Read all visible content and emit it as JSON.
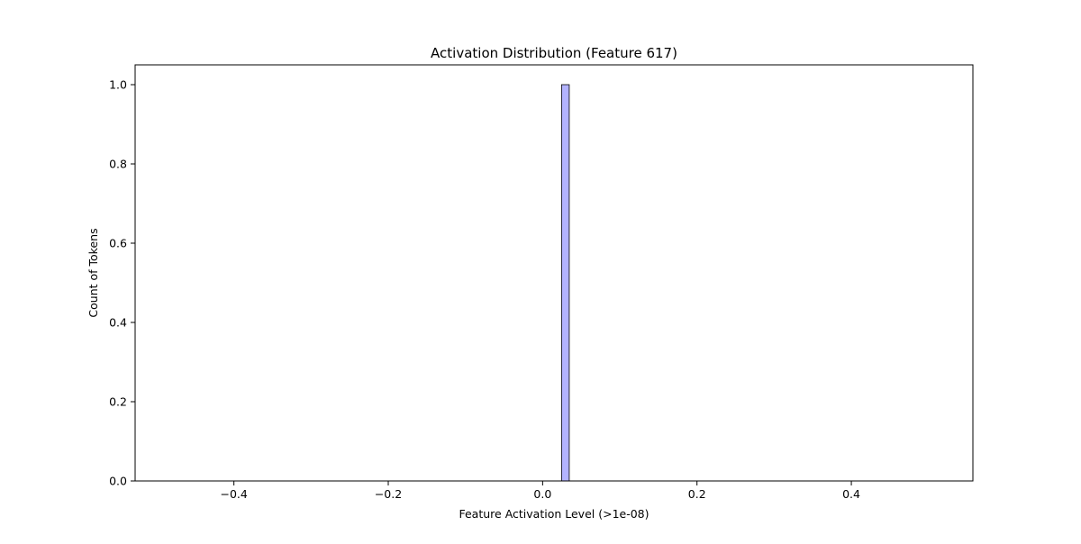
{
  "chart_data": {
    "type": "bar",
    "title": "Activation Distribution (Feature 617)",
    "xlabel": "Feature Activation Level (>1e-08)",
    "ylabel": "Count of Tokens",
    "xlim": [
      -0.528,
      0.5575
    ],
    "ylim": [
      0,
      1.05
    ],
    "xticks": [
      {
        "value": -0.4,
        "label": "−0.4"
      },
      {
        "value": -0.2,
        "label": "−0.2"
      },
      {
        "value": 0.0,
        "label": "0.0"
      },
      {
        "value": 0.2,
        "label": "0.2"
      },
      {
        "value": 0.4,
        "label": "0.4"
      }
    ],
    "yticks": [
      {
        "value": 0.0,
        "label": "0.0"
      },
      {
        "value": 0.2,
        "label": "0.2"
      },
      {
        "value": 0.4,
        "label": "0.4"
      },
      {
        "value": 0.6,
        "label": "0.6"
      },
      {
        "value": 0.8,
        "label": "0.8"
      },
      {
        "value": 1.0,
        "label": "1.0"
      }
    ],
    "bins": [
      {
        "x0": 0.0245,
        "x1": 0.0345,
        "count": 1
      }
    ],
    "grid": false,
    "bar_color": "#b3b3ff",
    "bar_edge_color": "#000000"
  }
}
